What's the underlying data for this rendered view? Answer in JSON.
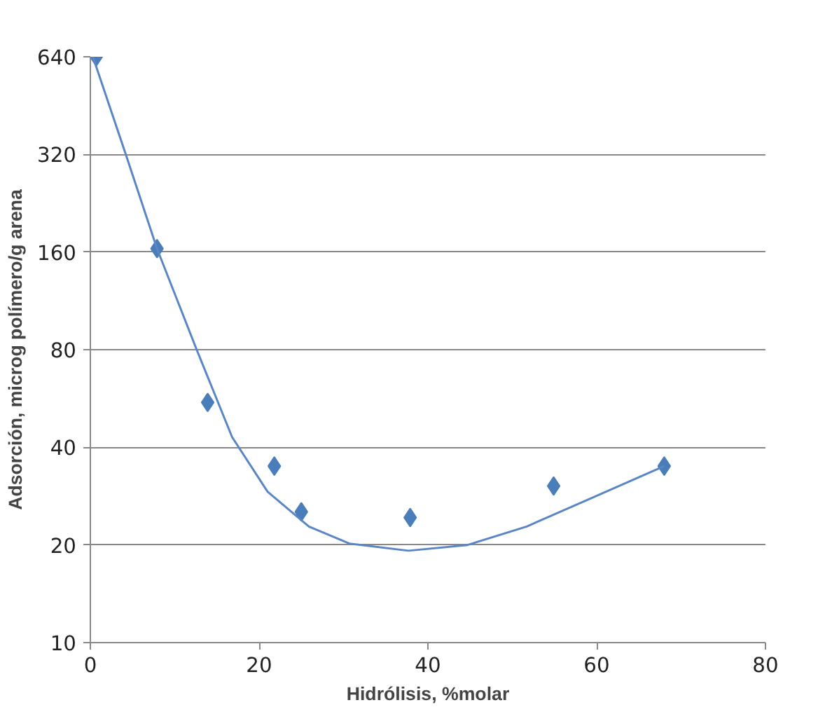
{
  "chart_data": {
    "type": "scatter",
    "xlabel": "Hidrólisis, %molar",
    "ylabel": "Adsorción, microg polímero/g arena",
    "log": "y",
    "grid": "y",
    "xlim": [
      0,
      80
    ],
    "xticks": [
      0,
      20,
      40,
      60,
      80
    ],
    "ylim": [
      10,
      640
    ],
    "yticks": [
      10,
      20,
      40,
      80,
      160,
      320,
      640
    ],
    "series": [
      {
        "color": "#4a7ebb",
        "marker": "diamond",
        "x": [
          0.7,
          7.9,
          13.9,
          21.8,
          25.0,
          37.9,
          54.9,
          68.0
        ],
        "values": [
          640,
          164,
          55,
          35,
          25.3,
          24.3,
          30.4,
          35
        ]
      },
      {
        "type": "line",
        "color": "#5b86c5",
        "x": [
          0.3,
          4.2,
          7.9,
          12.6,
          16.8,
          21,
          25.9,
          30.7,
          37.7,
          44.7,
          51.7,
          58.7,
          68
        ],
        "values": [
          640,
          320,
          164,
          80,
          43,
          29.2,
          22.8,
          20.2,
          19.2,
          20,
          22.8,
          27.4,
          35
        ]
      }
    ]
  }
}
